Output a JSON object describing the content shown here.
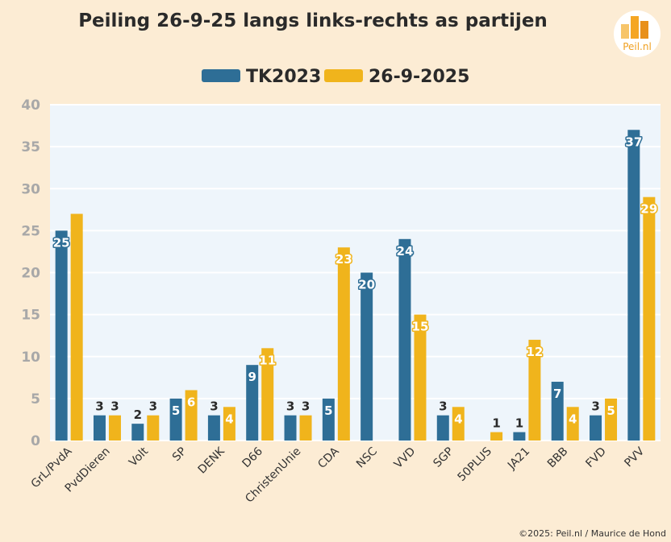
{
  "chart_data": {
    "type": "bar",
    "title": "Peiling 26-9-25 langs links-rechts as partijen",
    "categories": [
      "GrL/PvdA",
      "PvdDieren",
      "Volt",
      "SP",
      "DENK",
      "D66",
      "ChristenUnie",
      "CDA",
      "NSC",
      "VVD",
      "SGP",
      "50PLUS",
      "JA21",
      "BBB",
      "FVD",
      "PVV"
    ],
    "series": [
      {
        "name": "TK2023",
        "color": "#2e6e96",
        "values": [
          25,
          3,
          2,
          5,
          3,
          9,
          3,
          5,
          20,
          24,
          3,
          0,
          1,
          7,
          3,
          37
        ],
        "labels": [
          "25",
          "3",
          "2",
          "5",
          "3",
          "9",
          "3",
          "5",
          "20",
          "24",
          "3",
          "",
          "1",
          "7",
          "3",
          "37"
        ]
      },
      {
        "name": "26-9-2025",
        "color": "#f0b41c",
        "values": [
          27,
          3,
          3,
          6,
          4,
          11,
          3,
          23,
          0,
          15,
          4,
          1,
          12,
          4,
          5,
          29
        ],
        "labels": [
          "",
          "3",
          "3",
          "6",
          "4",
          "11",
          "3",
          "23",
          "",
          "15",
          "4",
          "1",
          "12",
          "4",
          "5",
          "29"
        ]
      }
    ],
    "ylim": [
      0,
      40
    ],
    "yticks": [
      0,
      5,
      10,
      15,
      20,
      25,
      30,
      35,
      40
    ],
    "grid": true,
    "legend": "top-center"
  },
  "footer": {
    "copyright": "©2025: Peil.nl / Maurice de Hond"
  },
  "logo": {
    "text": "Peil.nl"
  },
  "colors": {
    "background": "#fcecd4",
    "plot_background": "#eef5fb"
  }
}
